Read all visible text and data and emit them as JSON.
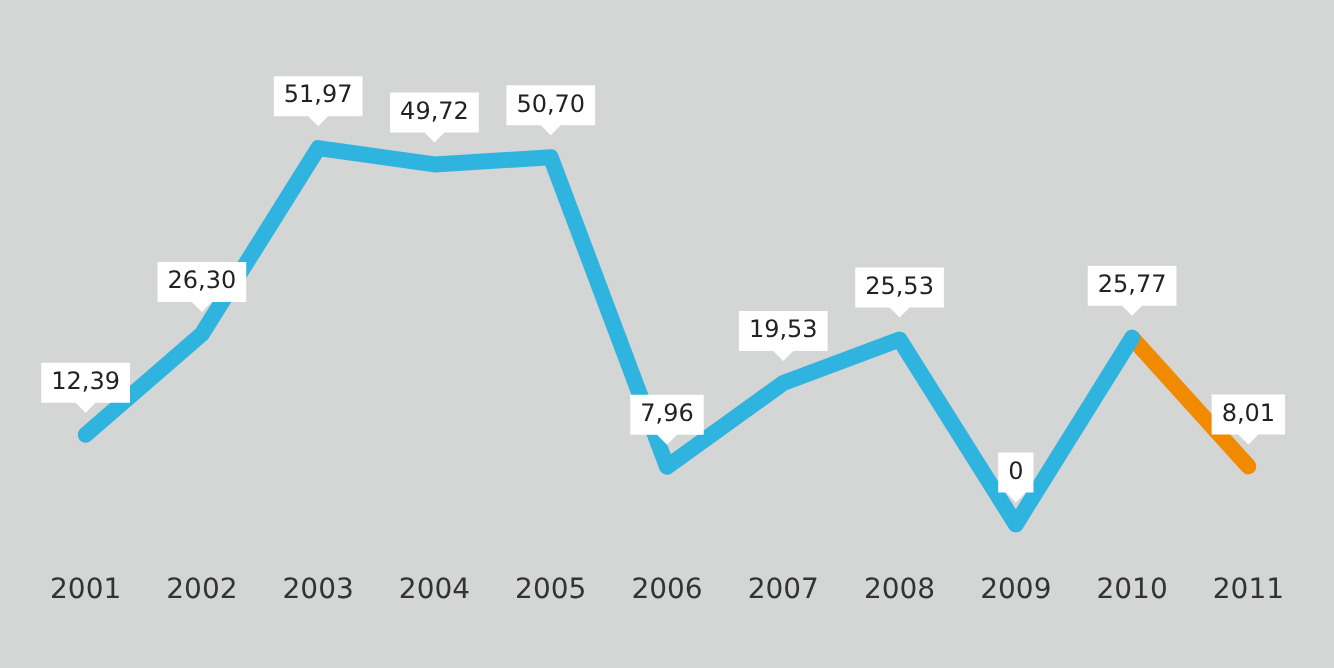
{
  "chart_data": {
    "type": "line",
    "categories": [
      "2001",
      "2002",
      "2003",
      "2004",
      "2005",
      "2006",
      "2007",
      "2008",
      "2009",
      "2010",
      "2011"
    ],
    "series": [
      {
        "color": "#2fb4e0",
        "values": [
          12.39,
          26.3,
          51.97,
          49.72,
          50.7,
          7.96,
          19.53,
          25.53,
          0,
          25.77,
          null
        ],
        "value_labels": [
          "12,39",
          "26,30",
          "51,97",
          "49,72",
          "50,70",
          "7,96",
          "19,53",
          "25,53",
          "0",
          "25,77",
          null
        ]
      },
      {
        "color": "#f08a00",
        "values": [
          null,
          null,
          null,
          null,
          null,
          null,
          null,
          null,
          null,
          25.77,
          8.01
        ],
        "value_labels": [
          null,
          null,
          null,
          null,
          null,
          null,
          null,
          null,
          null,
          null,
          "8,01"
        ]
      }
    ],
    "grid": false,
    "legend": false,
    "marker": "none",
    "line_style": "solid",
    "tick_labels": "x"
  }
}
